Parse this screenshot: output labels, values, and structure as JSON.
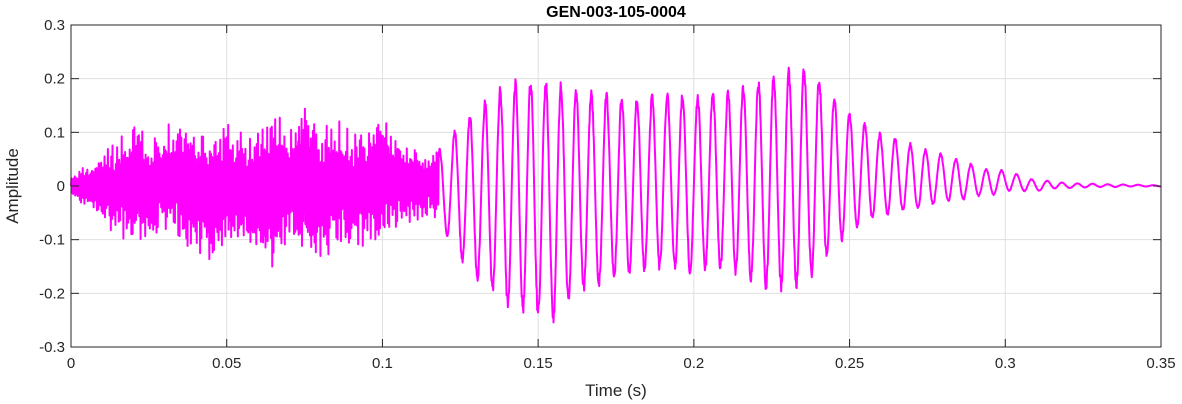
{
  "chart_data": {
    "type": "line",
    "title": "GEN-003-105-0004",
    "xlabel": "Time (s)",
    "ylabel": "Amplitude",
    "xlim": [
      0,
      0.35
    ],
    "ylim": [
      -0.3,
      0.3
    ],
    "x_ticks": [
      0,
      0.05,
      0.1,
      0.15,
      0.2,
      0.25,
      0.3,
      0.35
    ],
    "x_tick_labels": [
      "0",
      "0.05",
      "0.1",
      "0.15",
      "0.2",
      "0.25",
      "0.3",
      "0.35"
    ],
    "y_ticks": [
      -0.3,
      -0.2,
      -0.1,
      0,
      0.1,
      0.2,
      0.3
    ],
    "y_tick_labels": [
      "-0.3",
      "-0.2",
      "-0.1",
      "0",
      "0.1",
      "0.2",
      "0.3"
    ],
    "grid": true,
    "line_color": "#ff00ff",
    "series": [
      {
        "x": [
          0,
          0.005,
          0.01,
          0.015,
          0.02,
          0.025,
          0.03,
          0.035,
          0.04,
          0.045,
          0.05,
          0.055,
          0.06,
          0.065,
          0.07,
          0.075,
          0.08,
          0.085,
          0.09,
          0.095,
          0.1,
          0.105,
          0.11,
          0.115,
          0.12,
          0.125,
          0.13,
          0.135,
          0.14,
          0.145,
          0.15,
          0.155,
          0.16,
          0.165,
          0.17,
          0.175,
          0.18,
          0.185,
          0.19,
          0.195,
          0.2,
          0.205,
          0.21,
          0.215,
          0.22,
          0.225,
          0.23,
          0.235,
          0.24,
          0.245,
          0.25,
          0.255,
          0.26,
          0.265,
          0.27,
          0.275,
          0.28,
          0.285,
          0.29,
          0.295,
          0.3,
          0.305,
          0.31,
          0.315,
          0.32,
          0.325,
          0.33,
          0.335,
          0.34,
          0.345,
          0.35
        ],
        "upper": [
          0.02,
          0.04,
          0.06,
          0.09,
          0.13,
          0.09,
          0.12,
          0.12,
          0.1,
          0.11,
          0.12,
          0.1,
          0.11,
          0.15,
          0.12,
          0.16,
          0.12,
          0.13,
          0.1,
          0.12,
          0.13,
          0.1,
          0.08,
          0.06,
          0.08,
          0.12,
          0.15,
          0.17,
          0.2,
          0.2,
          0.21,
          0.2,
          0.19,
          0.18,
          0.18,
          0.17,
          0.17,
          0.17,
          0.18,
          0.18,
          0.17,
          0.18,
          0.18,
          0.19,
          0.2,
          0.21,
          0.22,
          0.23,
          0.21,
          0.17,
          0.14,
          0.12,
          0.1,
          0.09,
          0.08,
          0.07,
          0.06,
          0.05,
          0.04,
          0.03,
          0.03,
          0.02,
          0.01,
          0.01,
          0.005,
          0.005,
          0.004,
          0.003,
          0.003,
          0.002,
          0.001
        ],
        "lower": [
          -0.02,
          -0.04,
          -0.07,
          -0.1,
          -0.1,
          -0.1,
          -0.1,
          -0.11,
          -0.12,
          -0.16,
          -0.11,
          -0.12,
          -0.13,
          -0.17,
          -0.11,
          -0.13,
          -0.15,
          -0.11,
          -0.12,
          -0.12,
          -0.1,
          -0.09,
          -0.08,
          -0.06,
          -0.09,
          -0.14,
          -0.18,
          -0.2,
          -0.23,
          -0.24,
          -0.25,
          -0.26,
          -0.22,
          -0.2,
          -0.19,
          -0.18,
          -0.17,
          -0.16,
          -0.16,
          -0.16,
          -0.17,
          -0.16,
          -0.16,
          -0.17,
          -0.19,
          -0.2,
          -0.2,
          -0.19,
          -0.16,
          -0.12,
          -0.09,
          -0.07,
          -0.06,
          -0.05,
          -0.05,
          -0.04,
          -0.03,
          -0.03,
          -0.02,
          -0.02,
          -0.01,
          -0.01,
          -0.01,
          -0.005,
          -0.004,
          -0.003,
          -0.002,
          -0.002,
          -0.001,
          -0.001,
          -0.001
        ]
      }
    ]
  }
}
